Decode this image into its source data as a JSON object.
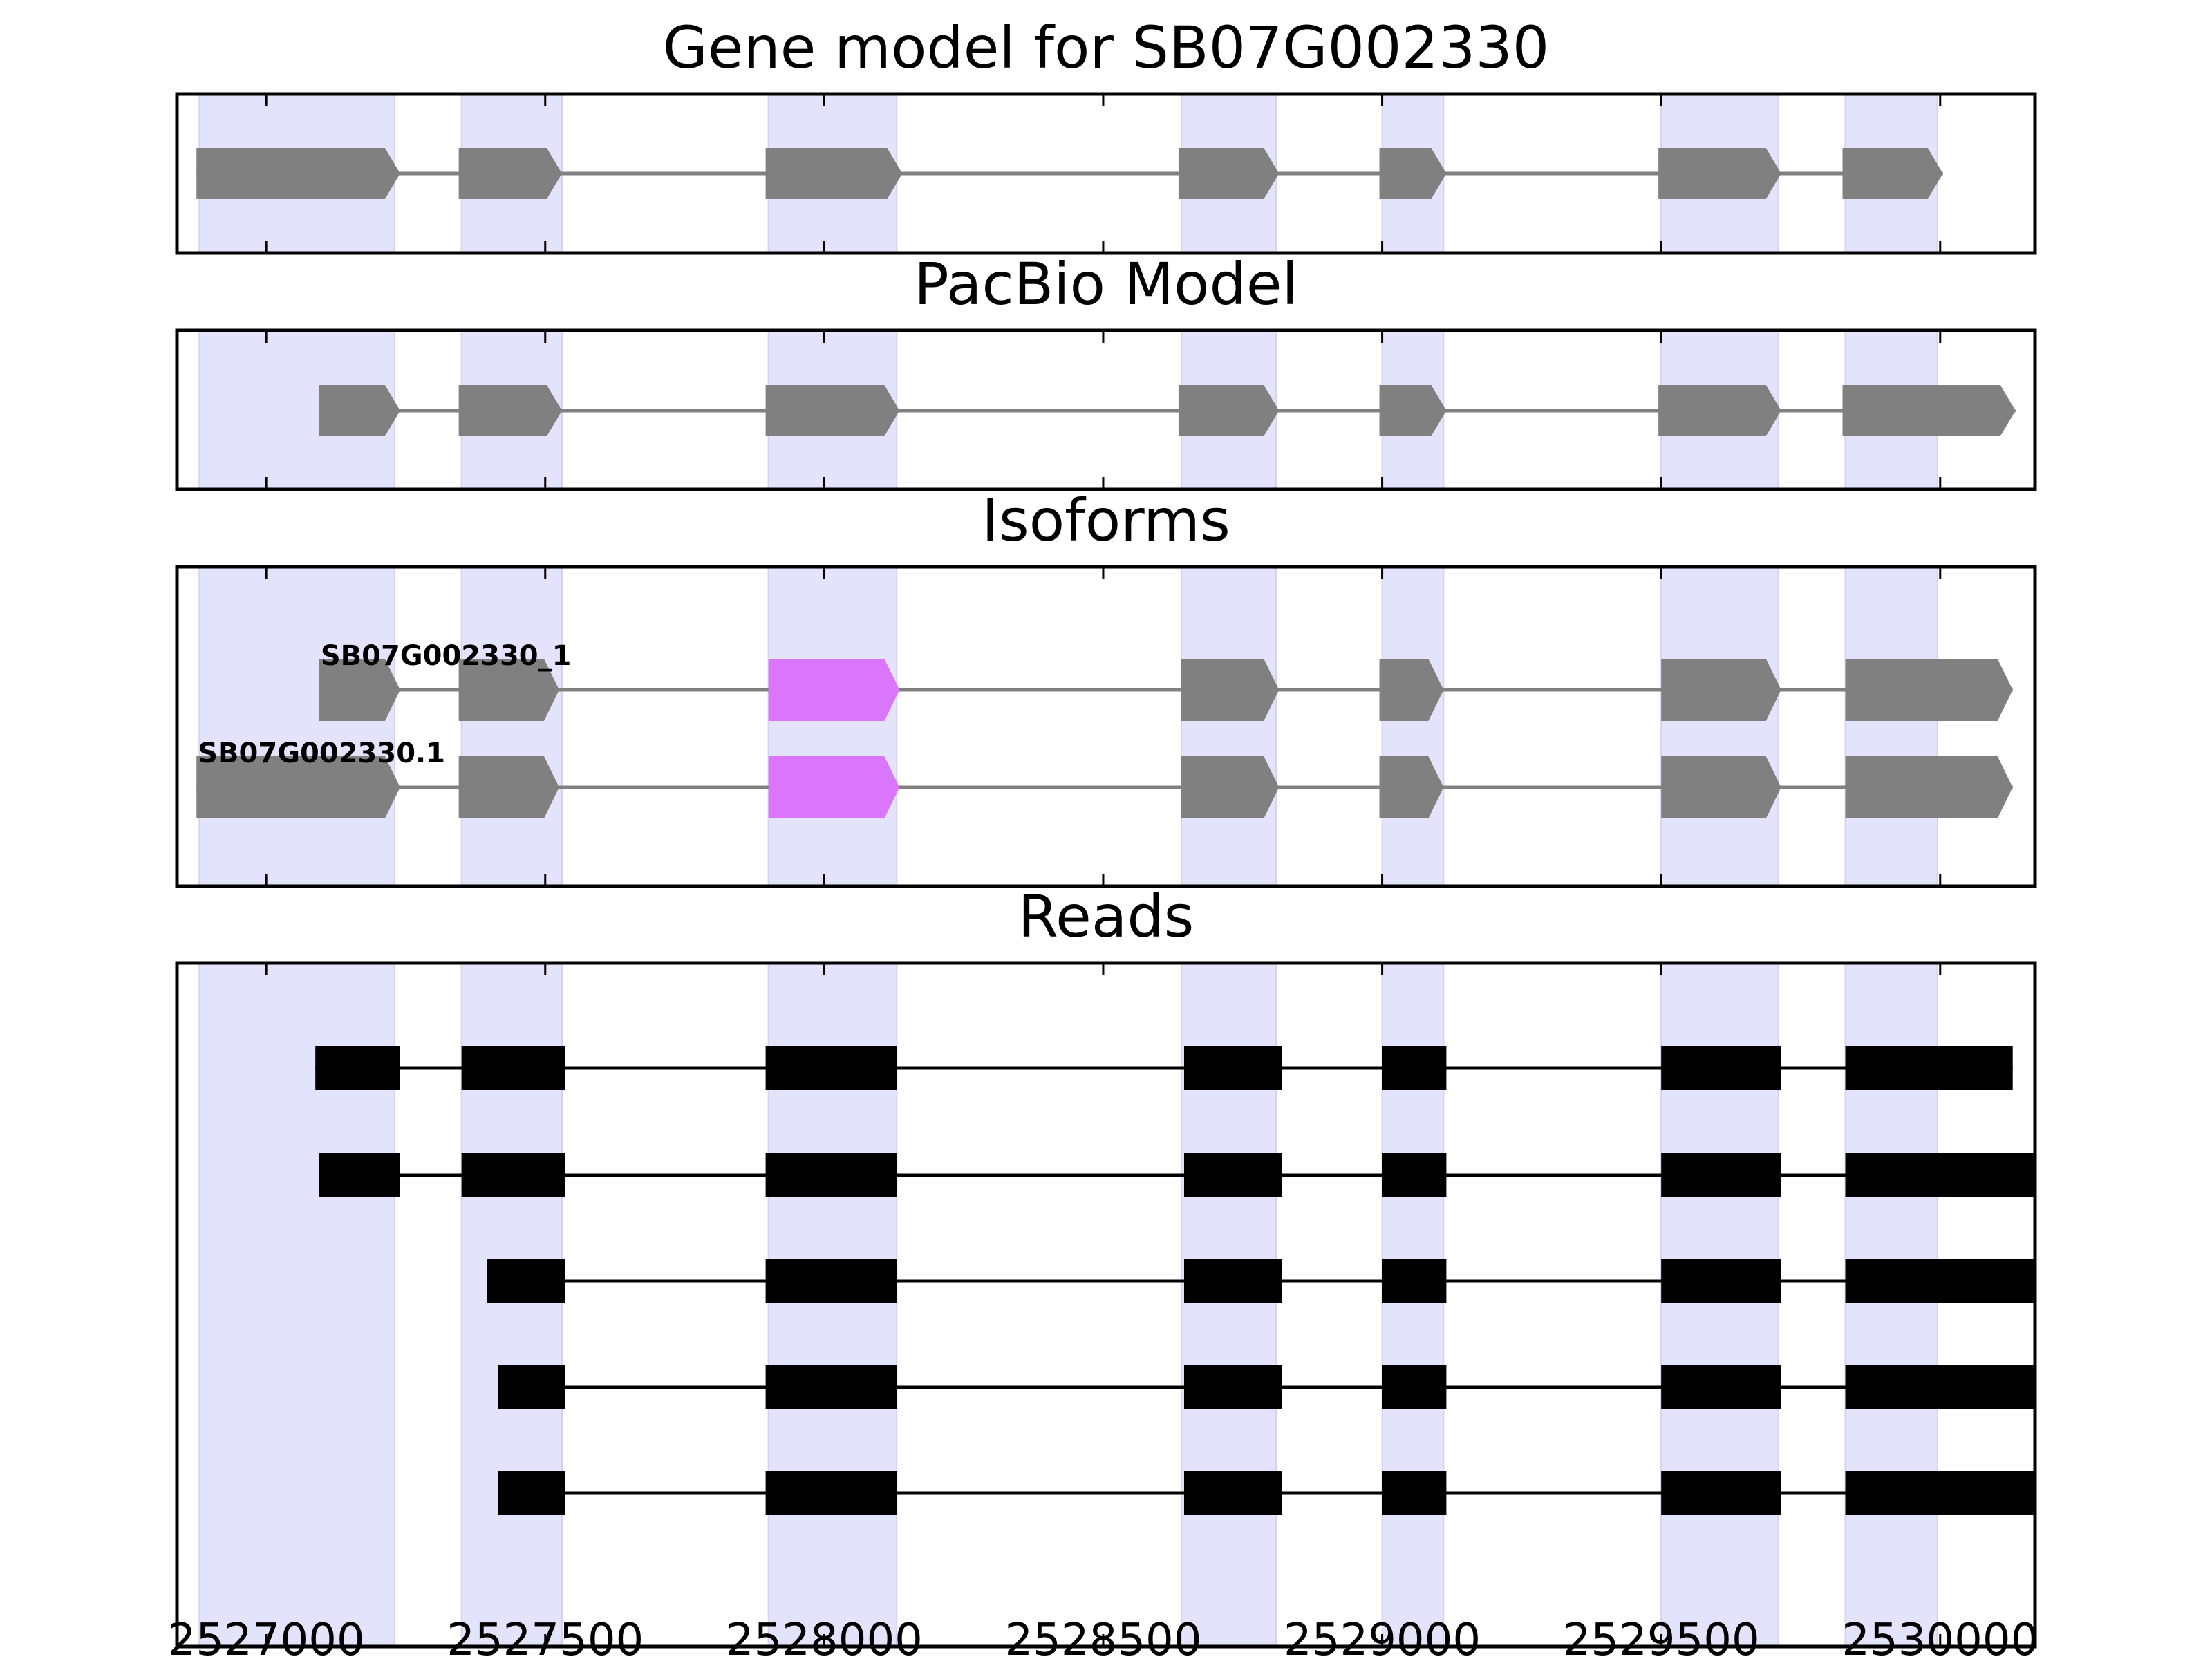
{
  "chart_data": {
    "type": "gene-structure",
    "xlim": [
      2526840,
      2530170
    ],
    "x_ticks": [
      {
        "value": 2527000,
        "label": "2527000"
      },
      {
        "value": 2527500,
        "label": "2527500"
      },
      {
        "value": 2528000,
        "label": "2528000"
      },
      {
        "value": 2528500,
        "label": "2528500"
      },
      {
        "value": 2529000,
        "label": "2529000"
      },
      {
        "value": 2529500,
        "label": "2529500"
      },
      {
        "value": 2530000,
        "label": "2530000"
      }
    ],
    "colors": {
      "exon": "#808080",
      "intron": "#808080",
      "highlight_exon": "#da76fb",
      "read": "#000000",
      "shade": "#e3e3fb",
      "frame": "#000000"
    },
    "shaded_regions": [
      [
        2526880,
        2527230
      ],
      [
        2527350,
        2527530
      ],
      [
        2527900,
        2528130
      ],
      [
        2528640,
        2528810
      ],
      [
        2529000,
        2529110
      ],
      [
        2529500,
        2529710
      ],
      [
        2529830,
        2529995
      ]
    ],
    "panels": [
      {
        "title": "Gene model for SB07G002330",
        "kind": "model",
        "rows": [
          {
            "label": "",
            "exons": [
              [
                2526875,
                2527240
              ],
              [
                2527345,
                2527530
              ],
              [
                2527895,
                2528140
              ],
              [
                2528635,
                2528815
              ],
              [
                2528995,
                2529115
              ],
              [
                2529495,
                2529715
              ],
              [
                2529825,
                2530005
              ]
            ]
          }
        ]
      },
      {
        "title": "PacBio Model",
        "kind": "model",
        "rows": [
          {
            "label": "",
            "exons": [
              [
                2527095,
                2527240
              ],
              [
                2527345,
                2527530
              ],
              [
                2527895,
                2528135
              ],
              [
                2528635,
                2528815
              ],
              [
                2528995,
                2529115
              ],
              [
                2529495,
                2529715
              ],
              [
                2529825,
                2530135
              ]
            ]
          }
        ]
      },
      {
        "title": "Isoforms",
        "kind": "model",
        "rows": [
          {
            "label": "SB07G002330_1",
            "exons": [
              [
                2527095,
                2527240
              ],
              [
                2527345,
                2527525
              ],
              [
                2527900,
                2528135
              ],
              [
                2528640,
                2528815
              ],
              [
                2528995,
                2529110
              ],
              [
                2529500,
                2529715
              ],
              [
                2529830,
                2530130
              ]
            ],
            "highlight": [
              2
            ]
          },
          {
            "label": "SB07G002330.1",
            "exons": [
              [
                2526875,
                2527240
              ],
              [
                2527345,
                2527525
              ],
              [
                2527900,
                2528135
              ],
              [
                2528640,
                2528815
              ],
              [
                2528995,
                2529110
              ],
              [
                2529500,
                2529715
              ],
              [
                2529830,
                2530130
              ]
            ],
            "highlight": [
              2
            ]
          }
        ]
      },
      {
        "title": "Reads",
        "kind": "reads",
        "rows": [
          {
            "exons": [
              [
                2527088,
                2527240
              ],
              [
                2527350,
                2527535
              ],
              [
                2527895,
                2528130
              ],
              [
                2528645,
                2528820
              ],
              [
                2529000,
                2529115
              ],
              [
                2529500,
                2529715
              ],
              [
                2529830,
                2530130
              ]
            ]
          },
          {
            "exons": [
              [
                2527095,
                2527240
              ],
              [
                2527350,
                2527535
              ],
              [
                2527895,
                2528130
              ],
              [
                2528645,
                2528820
              ],
              [
                2529000,
                2529115
              ],
              [
                2529500,
                2529715
              ],
              [
                2529830,
                2530170
              ]
            ]
          },
          {
            "exons": [
              [
                2527395,
                2527535
              ],
              [
                2527895,
                2528130
              ],
              [
                2528645,
                2528820
              ],
              [
                2529000,
                2529115
              ],
              [
                2529500,
                2529715
              ],
              [
                2529830,
                2530170
              ]
            ]
          },
          {
            "exons": [
              [
                2527415,
                2527535
              ],
              [
                2527895,
                2528130
              ],
              [
                2528645,
                2528820
              ],
              [
                2529000,
                2529115
              ],
              [
                2529500,
                2529715
              ],
              [
                2529830,
                2530170
              ]
            ]
          },
          {
            "exons": [
              [
                2527415,
                2527535
              ],
              [
                2527895,
                2528130
              ],
              [
                2528645,
                2528820
              ],
              [
                2529000,
                2529115
              ],
              [
                2529500,
                2529715
              ],
              [
                2529830,
                2530170
              ]
            ]
          }
        ]
      }
    ]
  }
}
